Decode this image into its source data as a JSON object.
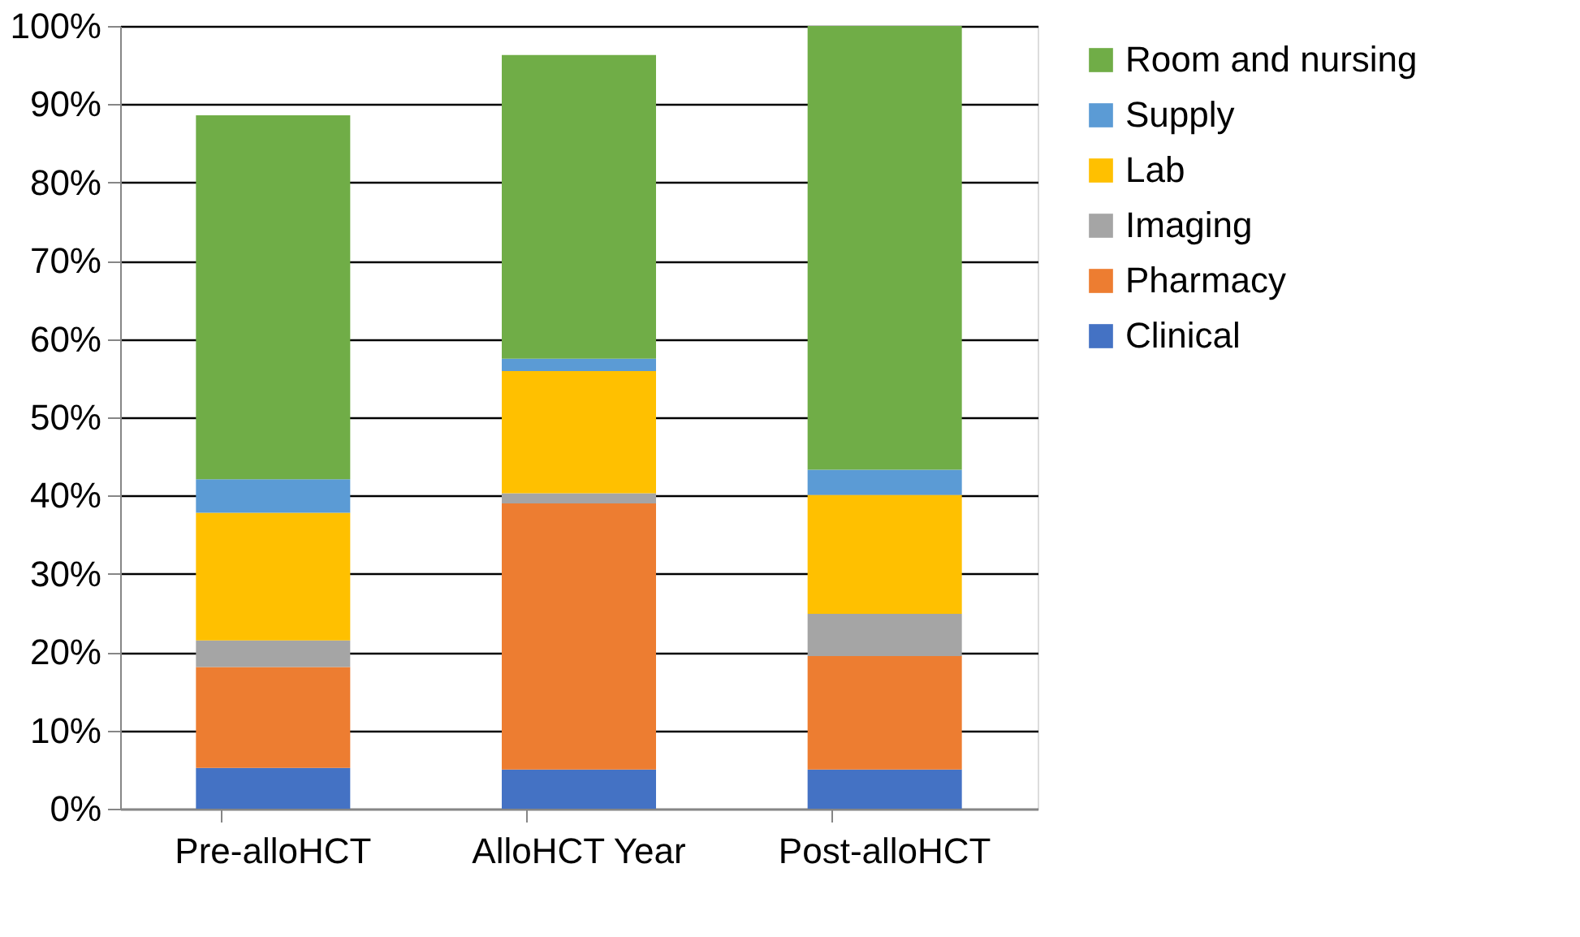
{
  "chart_data": {
    "type": "bar",
    "stacked": true,
    "categories": [
      "Pre-alloHCT",
      "AlloHCT Year",
      "Post-alloHCT"
    ],
    "series": [
      {
        "name": "Clinical",
        "color": "#4472c4",
        "values": [
          5.2,
          5.0,
          5.0
        ]
      },
      {
        "name": "Pharmacy",
        "color": "#ed7d31",
        "values": [
          12.9,
          34.0,
          14.5
        ]
      },
      {
        "name": "Imaging",
        "color": "#a5a5a5",
        "values": [
          3.4,
          1.3,
          5.4
        ]
      },
      {
        "name": "Lab",
        "color": "#ffc000",
        "values": [
          16.3,
          15.6,
          15.2
        ]
      },
      {
        "name": "Supply",
        "color": "#5b9bd5",
        "values": [
          4.3,
          1.6,
          3.2
        ]
      },
      {
        "name": "Room and nursing",
        "color": "#70ad47",
        "values": [
          46.5,
          38.8,
          56.7
        ]
      }
    ],
    "ylim": [
      0,
      100
    ],
    "yticks": [
      {
        "value": 0,
        "label": "0%"
      },
      {
        "value": 10,
        "label": "10%"
      },
      {
        "value": 20,
        "label": "20%"
      },
      {
        "value": 30,
        "label": "30%"
      },
      {
        "value": 40,
        "label": "40%"
      },
      {
        "value": 50,
        "label": "50%"
      },
      {
        "value": 60,
        "label": "60%"
      },
      {
        "value": 70,
        "label": "70%"
      },
      {
        "value": 80,
        "label": "80%"
      },
      {
        "value": 90,
        "label": "90%"
      },
      {
        "value": 100,
        "label": "100%"
      }
    ],
    "grid": "y",
    "legend": "right"
  }
}
